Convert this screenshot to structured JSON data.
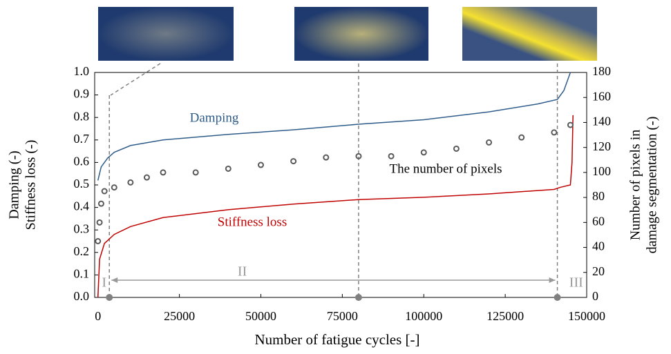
{
  "chart_data": {
    "type": "line",
    "x_label": "Number of fatigue cycles [-]",
    "y_label": [
      "Damping (-)",
      "Stiffness loss (-)"
    ],
    "y2_label": [
      "Number of pixels in",
      "damage segmentation (-)"
    ],
    "xlim": [
      -1000,
      150000
    ],
    "xticks": [
      0,
      25000,
      50000,
      75000,
      100000,
      125000,
      150000
    ],
    "ylim": [
      0,
      1
    ],
    "yticks": [
      {
        "value": 0,
        "label": "0.0"
      },
      0.1,
      0.2,
      0.3,
      0.4,
      0.5,
      0.6,
      0.7,
      0.8,
      0.9,
      {
        "value": 1,
        "label": "1.0"
      }
    ],
    "y2lim": [
      0,
      180
    ],
    "y2ticks": [
      0,
      20,
      40,
      60,
      80,
      100,
      120,
      140,
      160,
      180
    ],
    "series": [
      {
        "name": "Damping",
        "color": "#2e5c8a",
        "x": [
          0,
          1000,
          3000,
          5000,
          10000,
          20000,
          40000,
          60000,
          80000,
          100000,
          120000,
          135000,
          141000,
          143000,
          145000
        ],
        "values": [
          0.52,
          0.58,
          0.62,
          0.645,
          0.675,
          0.7,
          0.725,
          0.745,
          0.77,
          0.79,
          0.825,
          0.86,
          0.88,
          0.92,
          1.0
        ]
      },
      {
        "name": "Stiffness loss",
        "color": "#c00000",
        "x": [
          0,
          500,
          2000,
          5000,
          10000,
          20000,
          40000,
          60000,
          80000,
          100000,
          120000,
          140000,
          142000,
          145000,
          145500,
          145800
        ],
        "values": [
          0.0,
          0.17,
          0.24,
          0.28,
          0.315,
          0.355,
          0.39,
          0.415,
          0.435,
          0.445,
          0.46,
          0.48,
          0.49,
          0.5,
          0.6,
          0.81
        ]
      },
      {
        "name": "The number of pixels",
        "color": "#595959",
        "axis": "y2",
        "x": [
          0,
          500,
          1000,
          2000,
          5000,
          10000,
          15000,
          20000,
          30000,
          40000,
          50000,
          60000,
          70000,
          80000,
          90000,
          100000,
          110000,
          120000,
          130000,
          140000,
          145000
        ],
        "values": [
          45,
          60,
          75,
          85,
          88,
          92,
          96,
          100,
          100,
          103,
          106,
          109,
          112,
          113,
          113,
          116,
          119,
          124,
          128,
          132,
          138
        ]
      }
    ],
    "phase_lines": [
      3500,
      80000,
      141000
    ],
    "phases": [
      "I",
      "II",
      "III"
    ]
  }
}
